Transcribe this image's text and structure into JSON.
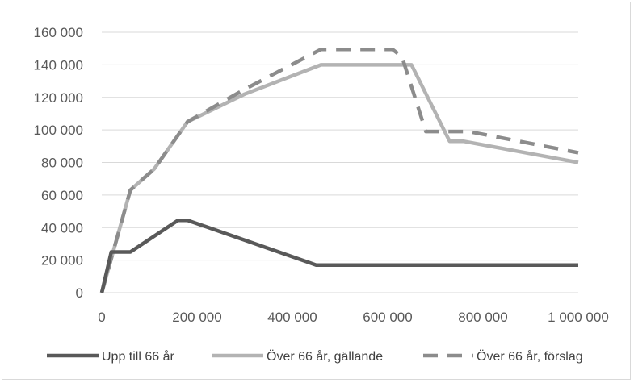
{
  "chart_data": {
    "type": "line",
    "title": "",
    "xlabel": "",
    "ylabel": "",
    "xlim": [
      0,
      1000000
    ],
    "ylim": [
      0,
      160000
    ],
    "x_ticks": [
      0,
      200000,
      400000,
      600000,
      800000,
      1000000
    ],
    "x_tick_labels": [
      "0",
      "200 000",
      "400 000",
      "600 000",
      "800 000",
      "1 000 000"
    ],
    "y_ticks": [
      0,
      20000,
      40000,
      60000,
      80000,
      100000,
      120000,
      140000,
      160000
    ],
    "y_tick_labels": [
      "0",
      "20 000",
      "40 000",
      "60 000",
      "80 000",
      "100 000",
      "120 000",
      "140 000",
      "160 000"
    ],
    "grid": "horizontal",
    "legend_position": "bottom",
    "series": [
      {
        "name": "Upp till 66 år",
        "color": "#595959",
        "dash": "solid",
        "points": [
          [
            0,
            0
          ],
          [
            20000,
            25000
          ],
          [
            60000,
            25000
          ],
          [
            160000,
            44500
          ],
          [
            180000,
            44500
          ],
          [
            450000,
            17000
          ],
          [
            1000000,
            17000
          ]
        ]
      },
      {
        "name": "Över 66 år, gällande",
        "color": "#b3b3b3",
        "dash": "solid",
        "points": [
          [
            0,
            0
          ],
          [
            60000,
            63000
          ],
          [
            110000,
            76000
          ],
          [
            180000,
            105000
          ],
          [
            300000,
            122000
          ],
          [
            460000,
            140000
          ],
          [
            650000,
            140000
          ],
          [
            730000,
            93000
          ],
          [
            760000,
            93000
          ],
          [
            1000000,
            80000
          ]
        ]
      },
      {
        "name": "Över 66 år, förslag",
        "color": "#8c8c8c",
        "dash": "dashed",
        "points": [
          [
            0,
            0
          ],
          [
            60000,
            63000
          ],
          [
            110000,
            76000
          ],
          [
            180000,
            105000
          ],
          [
            300000,
            125000
          ],
          [
            460000,
            149500
          ],
          [
            610000,
            149500
          ],
          [
            630000,
            145000
          ],
          [
            680000,
            99000
          ],
          [
            770000,
            99000
          ],
          [
            1000000,
            86000
          ]
        ]
      }
    ]
  }
}
